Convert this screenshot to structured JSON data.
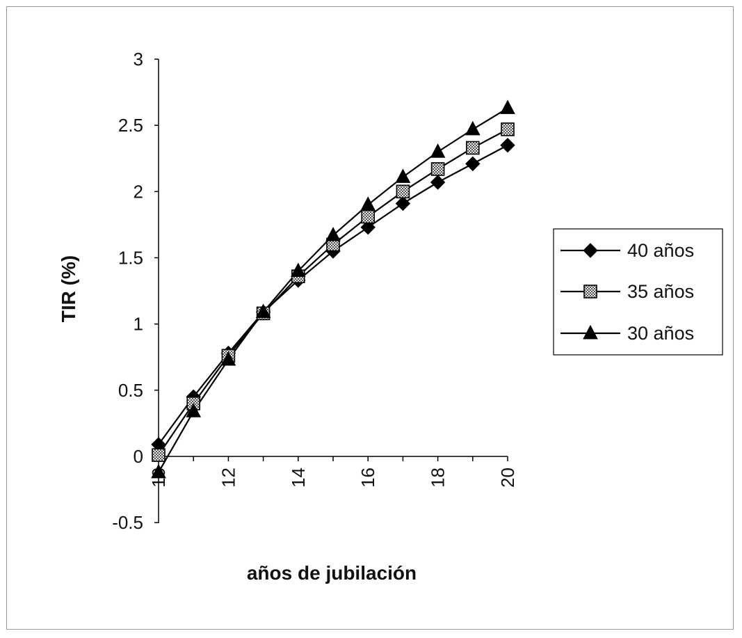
{
  "chart_data": {
    "type": "line",
    "title": "",
    "xlabel": "años de jubilación",
    "ylabel": "TIR (%)",
    "x": [
      10,
      11,
      12,
      13,
      14,
      15,
      16,
      17,
      18,
      19,
      20
    ],
    "x_tick_labels": [
      "10",
      "12",
      "14",
      "16",
      "18",
      "20"
    ],
    "y_tick_labels": [
      "-0.5",
      "0",
      "0.5",
      "1",
      "1.5",
      "2",
      "2.5",
      "3"
    ],
    "xlim": [
      10,
      20
    ],
    "ylim": [
      -0.5,
      3
    ],
    "grid": false,
    "legend_position": "right",
    "series": [
      {
        "name": "40 años",
        "marker": "diamond",
        "color": "#000000",
        "values": [
          0.09,
          0.45,
          0.78,
          1.09,
          1.33,
          1.55,
          1.73,
          1.91,
          2.07,
          2.21,
          2.35
        ]
      },
      {
        "name": "35 años",
        "marker": "square",
        "color": "#000000",
        "values": [
          0.01,
          0.4,
          0.76,
          1.08,
          1.36,
          1.6,
          1.81,
          2.0,
          2.17,
          2.33,
          2.47
        ]
      },
      {
        "name": "30 años",
        "marker": "triangle",
        "color": "#000000",
        "values": [
          -0.12,
          0.34,
          0.73,
          1.09,
          1.4,
          1.67,
          1.9,
          2.11,
          2.3,
          2.47,
          2.63
        ]
      }
    ]
  }
}
